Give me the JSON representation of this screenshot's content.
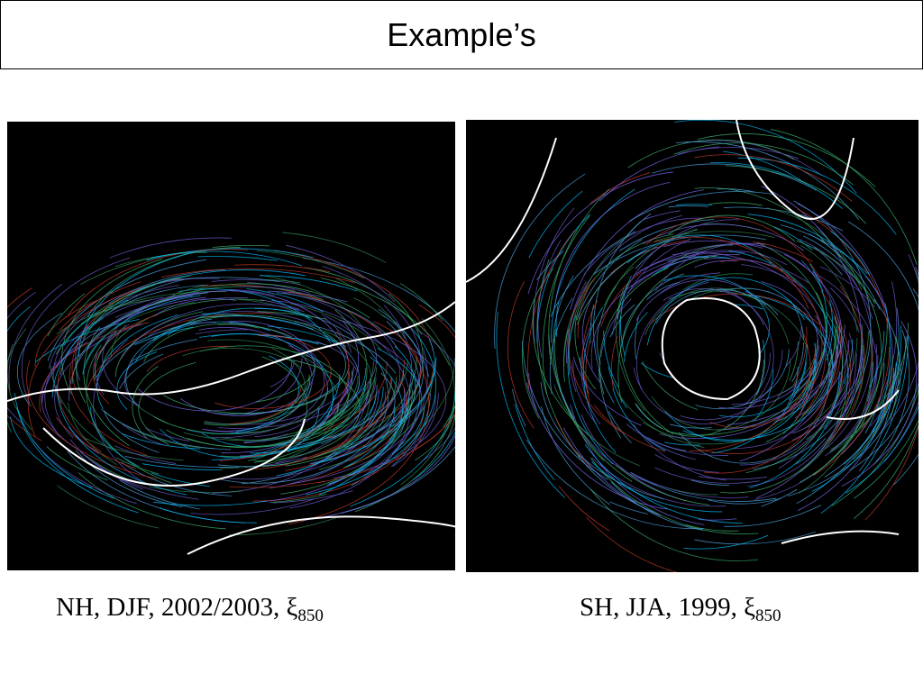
{
  "header": {
    "title": "Example’s"
  },
  "figures": [
    {
      "caption": {
        "text": "NH, DJF, 2002/2003, ξ",
        "subscript": "850"
      }
    },
    {
      "caption": {
        "text": "SH, JJA, 1999, ξ",
        "subscript": "850"
      }
    }
  ]
}
